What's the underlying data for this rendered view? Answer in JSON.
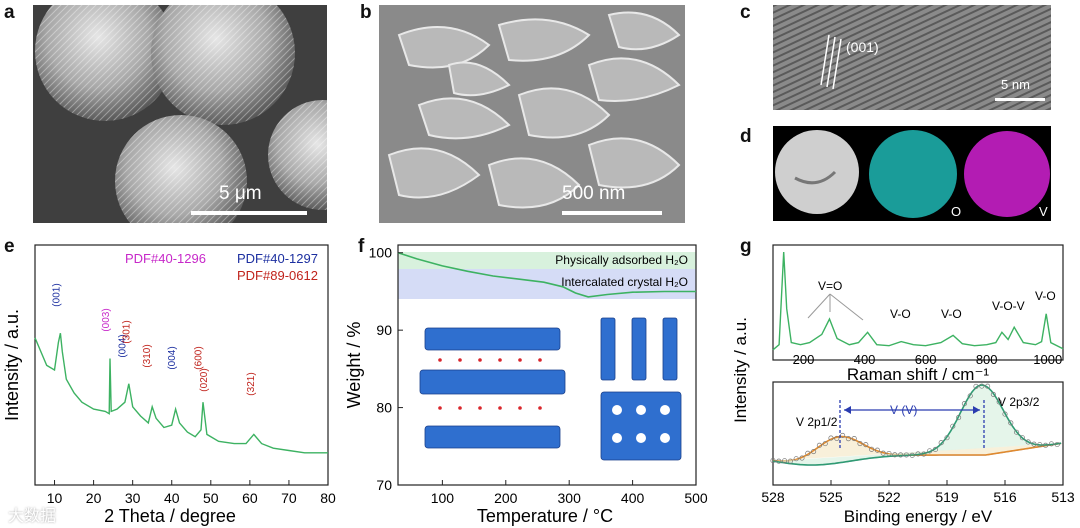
{
  "figure": {
    "panels": {
      "a": {
        "letter": "a",
        "scale_label": "5 μm"
      },
      "b": {
        "letter": "b",
        "scale_label": "500 nm"
      },
      "c": {
        "letter": "c",
        "scale_label": "5 nm",
        "plane_label": "(001)"
      },
      "d": {
        "letter": "d",
        "maps": [
          "",
          "O",
          "V"
        ],
        "map_colors": [
          "#bdbdbd",
          "#1fb7b4",
          "#c61fc6"
        ]
      },
      "e": {
        "letter": "e",
        "legend": [
          {
            "text": "PDF#40-1296",
            "color": "#c728c9"
          },
          {
            "text": "PDF#40-1297",
            "color": "#1c2fa0"
          },
          {
            "text": "PDF#89-0612",
            "color": "#c0231c"
          }
        ]
      },
      "f": {
        "letter": "f",
        "bands": [
          {
            "text": "Physically adsorbed H₂O",
            "color": "#d8f1dd"
          },
          {
            "text": "Intercalated crystal H₂O",
            "color": "#d5dcf6"
          }
        ]
      },
      "g": {
        "letter": "g",
        "raman_labels": [
          "V=O",
          "V-O",
          "V-O",
          "V-O-V",
          "V-O"
        ],
        "xps_labels": [
          "V 2p1/2",
          "V (V)",
          "V 2p3/2"
        ]
      }
    },
    "watermark": "大数据"
  },
  "chart_data": [
    {
      "type": "line",
      "panel": "e",
      "xlabel": "2 Theta / degree",
      "ylabel": "Intensity / a.u.",
      "xlim": [
        5,
        80
      ],
      "xticks": [
        10,
        20,
        30,
        40,
        50,
        60,
        70,
        80
      ],
      "series_color": "#3db262",
      "series": [
        {
          "x": [
            5,
            6,
            8,
            10,
            11,
            11.5,
            12,
            13,
            15,
            17,
            20,
            23,
            24,
            24.2,
            24.5,
            26,
            28,
            29,
            30,
            32,
            34,
            35,
            36,
            38,
            40,
            41,
            42,
            44,
            46,
            47.5,
            48,
            49,
            52,
            56,
            59,
            61,
            63,
            66,
            70,
            74,
            78,
            80
          ],
          "y": [
            0.64,
            0.6,
            0.52,
            0.5,
            0.62,
            0.66,
            0.58,
            0.46,
            0.4,
            0.36,
            0.33,
            0.32,
            0.31,
            0.55,
            0.32,
            0.33,
            0.36,
            0.44,
            0.34,
            0.3,
            0.27,
            0.34,
            0.29,
            0.25,
            0.26,
            0.33,
            0.27,
            0.23,
            0.21,
            0.24,
            0.36,
            0.22,
            0.19,
            0.18,
            0.18,
            0.22,
            0.18,
            0.16,
            0.15,
            0.14,
            0.14,
            0.14
          ]
        }
      ],
      "peak_labels": [
        {
          "x": 11.3,
          "text": "(001)",
          "color": "#1c2fa0"
        },
        {
          "x": 24.0,
          "text": "(003)",
          "color": "#c728c9"
        },
        {
          "x": 28.2,
          "text": "(004)",
          "color": "#1c2fa0"
        },
        {
          "x": 29.2,
          "text": "(301)",
          "color": "#c0231c"
        },
        {
          "x": 34.4,
          "text": "(310)",
          "color": "#c0231c"
        },
        {
          "x": 40.9,
          "text": "(004)",
          "color": "#1c2fa0"
        },
        {
          "x": 47.6,
          "text": "(600)",
          "color": "#c0231c"
        },
        {
          "x": 49.0,
          "text": "(020)",
          "color": "#c0231c"
        },
        {
          "x": 61.0,
          "text": "(321)",
          "color": "#c0231c"
        }
      ]
    },
    {
      "type": "line",
      "panel": "f",
      "xlabel": "Temperature / °C",
      "ylabel": "Weight / %",
      "xlim": [
        30,
        500
      ],
      "ylim": [
        70,
        101
      ],
      "xticks": [
        100,
        200,
        300,
        400,
        500
      ],
      "yticks": [
        70,
        80,
        90,
        100
      ],
      "series_color": "#3db262",
      "series": [
        {
          "x": [
            30,
            60,
            100,
            140,
            180,
            220,
            260,
            290,
            310,
            330,
            360,
            400,
            450,
            500
          ],
          "y": [
            100,
            99.2,
            98.3,
            97.6,
            97.0,
            96.6,
            96.2,
            95.6,
            94.8,
            94.3,
            94.6,
            94.9,
            95.0,
            95.0
          ]
        }
      ]
    },
    {
      "type": "line",
      "panel": "g-top",
      "xlabel": "Raman shift / cm⁻¹",
      "ylabel": "Intensity / a.u.",
      "xlim": [
        100,
        1050
      ],
      "xticks": [
        200,
        400,
        600,
        800,
        1000
      ],
      "series_color": "#3db262",
      "series": [
        {
          "x": [
            100,
            120,
            135,
            145,
            160,
            190,
            220,
            260,
            285,
            310,
            350,
            380,
            410,
            440,
            480,
            520,
            560,
            600,
            650,
            690,
            720,
            760,
            800,
            830,
            850,
            870,
            890,
            920,
            960,
            980,
            995,
            1010,
            1050
          ],
          "y": [
            0.05,
            0.1,
            1.0,
            0.45,
            0.12,
            0.1,
            0.12,
            0.2,
            0.35,
            0.16,
            0.1,
            0.12,
            0.22,
            0.1,
            0.09,
            0.13,
            0.1,
            0.09,
            0.12,
            0.19,
            0.11,
            0.09,
            0.1,
            0.12,
            0.22,
            0.15,
            0.27,
            0.12,
            0.1,
            0.13,
            0.4,
            0.12,
            0.06
          ]
        }
      ]
    },
    {
      "type": "scatter",
      "panel": "g-bottom",
      "xlabel": "Binding energy / eV",
      "xlim": [
        528,
        513
      ],
      "xticks": [
        528,
        525,
        522,
        519,
        516,
        513
      ],
      "peaks": [
        {
          "center": 524.6,
          "label": "V 2p1/2"
        },
        {
          "center": 517.2,
          "label": "V 2p3/2"
        }
      ]
    }
  ]
}
